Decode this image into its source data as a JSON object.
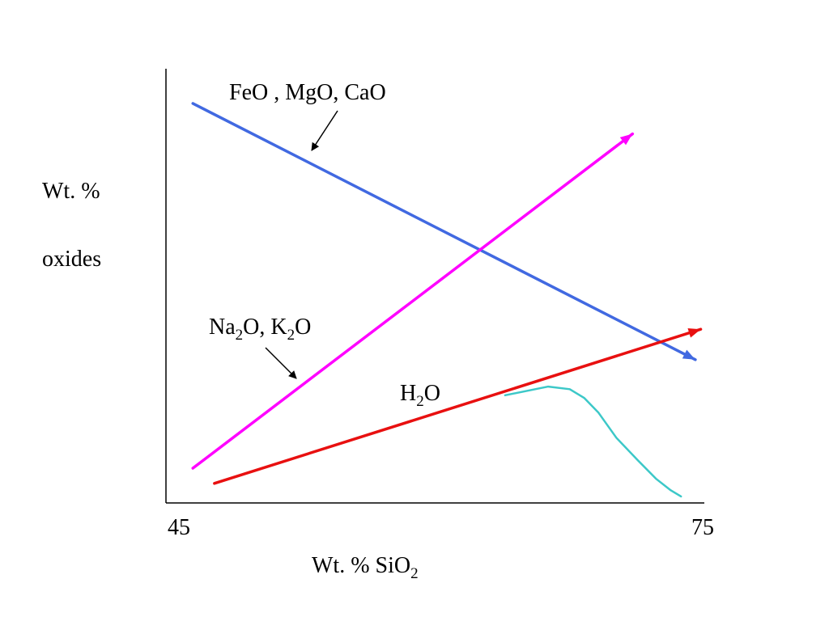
{
  "chart_data": {
    "type": "line",
    "xlabel_main": "Wt. %  SiO",
    "xlabel_sub": "2",
    "ylabel_line1": "Wt. %",
    "ylabel_line2": "oxides",
    "xlim": [
      45,
      75
    ],
    "x_ticks": [
      "45",
      "75"
    ],
    "grid": false,
    "legend": "none",
    "series": [
      {
        "key": "femg",
        "color": "#4169e1",
        "x": [
          46.5,
          74.5
        ],
        "y": [
          92,
          33
        ],
        "arrow_end": true
      },
      {
        "key": "alkali",
        "color": "#ff00ff",
        "x": [
          46.5,
          71
        ],
        "y": [
          8,
          85
        ],
        "arrow_end": true
      },
      {
        "key": "water",
        "color": "#e81010",
        "x": [
          47.7,
          74.8
        ],
        "y": [
          4.5,
          40
        ],
        "arrow_end": true
      },
      {
        "key": "water_curve",
        "color": "#3cc8c8",
        "x": [
          63.9,
          66.3,
          67.5,
          68.3,
          69.1,
          70.1,
          71.3,
          72.3,
          73.1,
          73.7
        ],
        "y": [
          24.8,
          26.8,
          26.2,
          24.2,
          20.8,
          15.0,
          9.8,
          5.6,
          3.0,
          1.5
        ],
        "arrow_end": false
      }
    ],
    "annotations": [
      {
        "key": "femg_label",
        "text": "FeO , MgO, CaO"
      },
      {
        "key": "alkali_label",
        "parts": [
          "Na",
          "2",
          "O, K",
          "2",
          "O"
        ]
      },
      {
        "key": "water_label",
        "parts": [
          "H",
          "2",
          "O"
        ]
      }
    ]
  }
}
